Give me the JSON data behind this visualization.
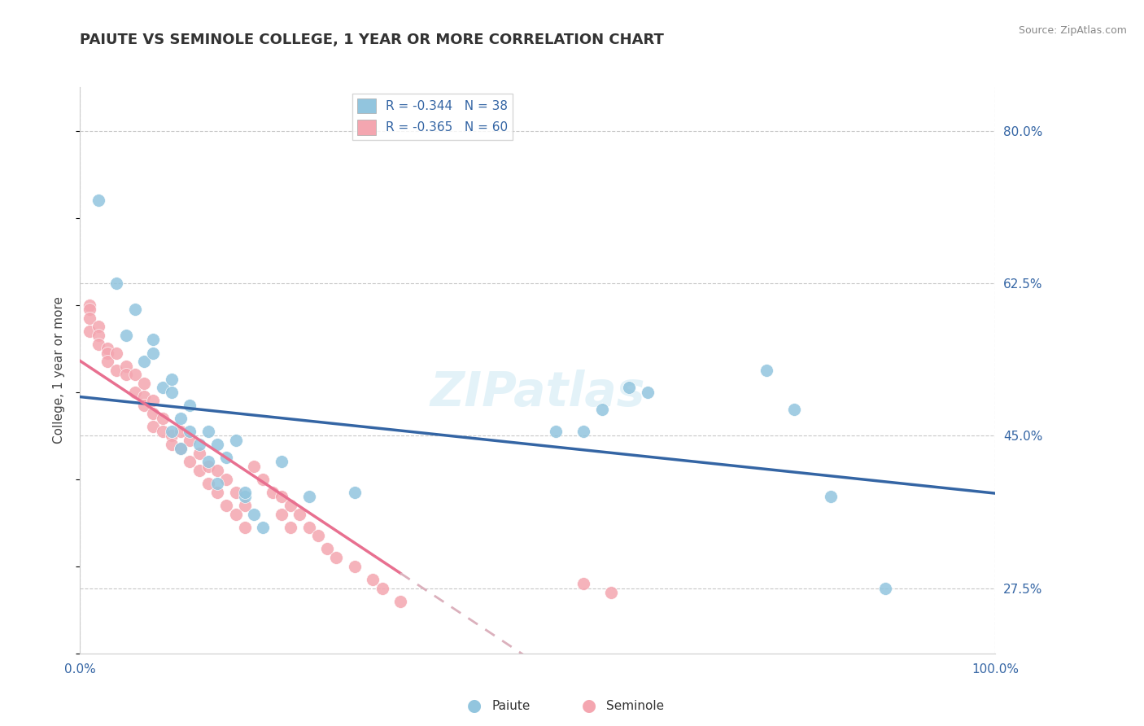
{
  "title": "PAIUTE VS SEMINOLE COLLEGE, 1 YEAR OR MORE CORRELATION CHART",
  "source_text": "Source: ZipAtlas.com",
  "ylabel": "College, 1 year or more",
  "xlim": [
    0.0,
    1.0
  ],
  "ylim": [
    0.2,
    0.85
  ],
  "x_ticks": [
    0.0,
    1.0
  ],
  "x_tick_labels": [
    "0.0%",
    "100.0%"
  ],
  "y_ticks": [
    0.275,
    0.45,
    0.625,
    0.8
  ],
  "y_tick_labels": [
    "27.5%",
    "45.0%",
    "62.5%",
    "80.0%"
  ],
  "legend_r1": "R = -0.344",
  "legend_n1": "N = 38",
  "legend_r2": "R = -0.365",
  "legend_n2": "N = 60",
  "legend_label1": "Paiute",
  "legend_label2": "Seminole",
  "color_paiute": "#92c5de",
  "color_seminole": "#f4a6b0",
  "color_line_paiute": "#3465a4",
  "color_line_seminole": "#e87090",
  "color_line_seminole_ext": "#dbb0bc",
  "color_text_blue": "#3465a4",
  "color_grid": "#c8c8c8",
  "paiute_x": [
    0.02,
    0.04,
    0.05,
    0.06,
    0.07,
    0.08,
    0.08,
    0.09,
    0.1,
    0.1,
    0.1,
    0.11,
    0.11,
    0.12,
    0.12,
    0.13,
    0.14,
    0.14,
    0.15,
    0.15,
    0.16,
    0.17,
    0.18,
    0.18,
    0.19,
    0.2,
    0.22,
    0.25,
    0.3,
    0.52,
    0.55,
    0.57,
    0.6,
    0.62,
    0.75,
    0.78,
    0.82,
    0.88
  ],
  "paiute_y": [
    0.72,
    0.625,
    0.565,
    0.595,
    0.535,
    0.56,
    0.545,
    0.505,
    0.5,
    0.515,
    0.455,
    0.47,
    0.435,
    0.485,
    0.455,
    0.44,
    0.455,
    0.42,
    0.44,
    0.395,
    0.425,
    0.445,
    0.38,
    0.385,
    0.36,
    0.345,
    0.42,
    0.38,
    0.385,
    0.455,
    0.455,
    0.48,
    0.505,
    0.5,
    0.525,
    0.48,
    0.38,
    0.275
  ],
  "seminole_x": [
    0.01,
    0.01,
    0.01,
    0.01,
    0.02,
    0.02,
    0.02,
    0.03,
    0.03,
    0.03,
    0.04,
    0.04,
    0.05,
    0.05,
    0.06,
    0.06,
    0.07,
    0.07,
    0.07,
    0.08,
    0.08,
    0.08,
    0.09,
    0.09,
    0.1,
    0.1,
    0.11,
    0.11,
    0.12,
    0.12,
    0.13,
    0.13,
    0.14,
    0.14,
    0.15,
    0.15,
    0.16,
    0.16,
    0.17,
    0.17,
    0.18,
    0.18,
    0.19,
    0.2,
    0.21,
    0.22,
    0.22,
    0.23,
    0.23,
    0.24,
    0.25,
    0.26,
    0.27,
    0.28,
    0.3,
    0.32,
    0.33,
    0.35,
    0.55,
    0.58
  ],
  "seminole_y": [
    0.6,
    0.595,
    0.585,
    0.57,
    0.575,
    0.565,
    0.555,
    0.55,
    0.545,
    0.535,
    0.545,
    0.525,
    0.53,
    0.52,
    0.52,
    0.5,
    0.51,
    0.495,
    0.485,
    0.49,
    0.475,
    0.46,
    0.47,
    0.455,
    0.45,
    0.44,
    0.455,
    0.435,
    0.445,
    0.42,
    0.43,
    0.41,
    0.415,
    0.395,
    0.41,
    0.385,
    0.4,
    0.37,
    0.385,
    0.36,
    0.37,
    0.345,
    0.415,
    0.4,
    0.385,
    0.38,
    0.36,
    0.37,
    0.345,
    0.36,
    0.345,
    0.335,
    0.32,
    0.31,
    0.3,
    0.285,
    0.275,
    0.26,
    0.28,
    0.27
  ],
  "watermark": "ZIPatlas",
  "background_color": "#ffffff",
  "plot_bg_color": "#ffffff"
}
